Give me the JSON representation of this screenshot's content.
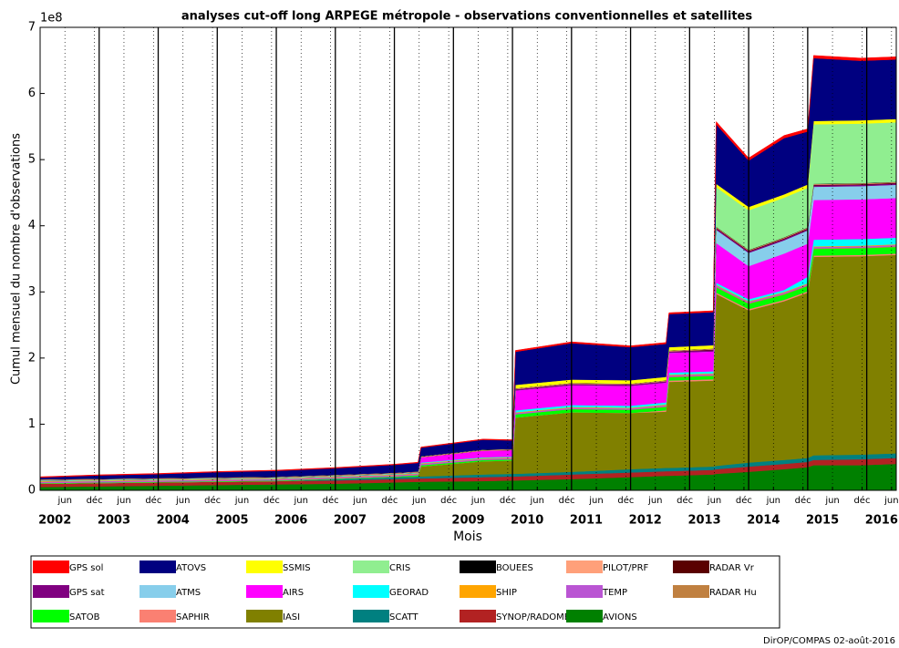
{
  "chart_data": {
    "type": "stacked_area",
    "title": "analyses cut-off long ARPEGE métropole - observations conventionnelles et satellites",
    "ylabel": "Cumul mensuel du nombre d'observations",
    "xlabel": "Mois",
    "y_offset_label": "1e8",
    "footer": "DirOP/COMPAS 02-août-2016",
    "xlim": [
      2002.0,
      2016.5
    ],
    "ylim": [
      0,
      7
    ],
    "yticks": [
      0,
      1,
      2,
      3,
      4,
      5,
      6,
      7
    ],
    "grid": true,
    "legend": "below",
    "xticks": [
      {
        "value": 2002.42,
        "label": "jun"
      },
      {
        "value": 2002.92,
        "label": "déc"
      },
      {
        "value": 2003.42,
        "label": "jun"
      },
      {
        "value": 2003.92,
        "label": "déc"
      },
      {
        "value": 2004.42,
        "label": "jun"
      },
      {
        "value": 2004.92,
        "label": "déc"
      },
      {
        "value": 2005.42,
        "label": "jun"
      },
      {
        "value": 2005.92,
        "label": "déc"
      },
      {
        "value": 2006.42,
        "label": "jun"
      },
      {
        "value": 2006.92,
        "label": "déc"
      },
      {
        "value": 2007.42,
        "label": "jun"
      },
      {
        "value": 2007.92,
        "label": "déc"
      },
      {
        "value": 2008.42,
        "label": "jun"
      },
      {
        "value": 2008.92,
        "label": "déc"
      },
      {
        "value": 2009.42,
        "label": "jun"
      },
      {
        "value": 2009.92,
        "label": "déc"
      },
      {
        "value": 2010.42,
        "label": "jun"
      },
      {
        "value": 2010.92,
        "label": "déc"
      },
      {
        "value": 2011.42,
        "label": "jun"
      },
      {
        "value": 2011.92,
        "label": "déc"
      },
      {
        "value": 2012.42,
        "label": "jun"
      },
      {
        "value": 2012.92,
        "label": "déc"
      },
      {
        "value": 2013.42,
        "label": "jun"
      },
      {
        "value": 2013.92,
        "label": "déc"
      },
      {
        "value": 2014.42,
        "label": "jun"
      },
      {
        "value": 2014.92,
        "label": "déc"
      },
      {
        "value": 2015.42,
        "label": "jun"
      },
      {
        "value": 2015.92,
        "label": "déc"
      },
      {
        "value": 2016.42,
        "label": "jun"
      }
    ],
    "year_labels": [
      {
        "value": 2002.25,
        "label": "2002"
      },
      {
        "value": 2003.25,
        "label": "2003"
      },
      {
        "value": 2004.25,
        "label": "2004"
      },
      {
        "value": 2005.25,
        "label": "2005"
      },
      {
        "value": 2006.25,
        "label": "2006"
      },
      {
        "value": 2007.25,
        "label": "2007"
      },
      {
        "value": 2008.25,
        "label": "2008"
      },
      {
        "value": 2009.25,
        "label": "2009"
      },
      {
        "value": 2010.25,
        "label": "2010"
      },
      {
        "value": 2011.25,
        "label": "2011"
      },
      {
        "value": 2012.25,
        "label": "2012"
      },
      {
        "value": 2013.25,
        "label": "2013"
      },
      {
        "value": 2014.25,
        "label": "2014"
      },
      {
        "value": 2015.25,
        "label": "2015"
      },
      {
        "value": 2016.25,
        "label": "2016"
      }
    ],
    "vlines": [
      2003,
      2004,
      2005,
      2006,
      2007,
      2008,
      2009,
      2010,
      2011,
      2012,
      2013,
      2014,
      2015,
      2016
    ],
    "x": [
      2002.0,
      2003.0,
      2004.0,
      2005.0,
      2006.0,
      2007.0,
      2008.0,
      2008.4,
      2008.45,
      2009.5,
      2010.0,
      2010.05,
      2011.0,
      2012.0,
      2012.6,
      2012.65,
      2013.4,
      2013.45,
      2014.0,
      2014.6,
      2015.0,
      2015.1,
      2015.9,
      2016.5
    ],
    "series": [
      {
        "name": "GPS sol",
        "color": "#ff0000",
        "values": [
          0.01,
          0.01,
          0.01,
          0.01,
          0.01,
          0.01,
          0.01,
          0.01,
          0.01,
          0.01,
          0.01,
          0.02,
          0.02,
          0.02,
          0.02,
          0.02,
          0.02,
          0.04,
          0.04,
          0.04,
          0.04,
          0.04,
          0.04,
          0.04
        ]
      },
      {
        "name": "ATOVS",
        "color": "#000080",
        "values": [
          0.03,
          0.05,
          0.06,
          0.08,
          0.09,
          0.1,
          0.12,
          0.13,
          0.13,
          0.15,
          0.13,
          0.5,
          0.55,
          0.5,
          0.5,
          0.5,
          0.5,
          0.9,
          0.7,
          0.85,
          0.8,
          0.95,
          0.9,
          0.9
        ]
      },
      {
        "name": "SSMIS",
        "color": "#ffff00",
        "values": [
          0,
          0,
          0,
          0,
          0,
          0,
          0,
          0,
          0,
          0,
          0,
          0.05,
          0.05,
          0.05,
          0.05,
          0.05,
          0.05,
          0.05,
          0.05,
          0.05,
          0.05,
          0.05,
          0.05,
          0.05
        ]
      },
      {
        "name": "CRIS",
        "color": "#90ee90",
        "values": [
          0,
          0,
          0,
          0,
          0,
          0,
          0,
          0,
          0,
          0,
          0,
          0,
          0,
          0,
          0,
          0,
          0,
          0.6,
          0.6,
          0.6,
          0.6,
          0.9,
          0.9,
          0.9
        ]
      },
      {
        "name": "BOUEES",
        "color": "#000000",
        "values": [
          0.005,
          0.005,
          0.005,
          0.005,
          0.005,
          0.005,
          0.005,
          0.005,
          0.005,
          0.005,
          0.005,
          0.005,
          0.005,
          0.005,
          0.005,
          0.005,
          0.005,
          0.005,
          0.005,
          0.005,
          0.005,
          0.005,
          0.005,
          0.005
        ]
      },
      {
        "name": "PILOT/PRF",
        "color": "#ffa07a",
        "values": [
          0.01,
          0.01,
          0.01,
          0.01,
          0.01,
          0.01,
          0.01,
          0.01,
          0.01,
          0.01,
          0.01,
          0.01,
          0.01,
          0.01,
          0.01,
          0.01,
          0.01,
          0.01,
          0.01,
          0.01,
          0.01,
          0.01,
          0.01,
          0.01
        ]
      },
      {
        "name": "RADAR Vr",
        "color": "#5a0000",
        "values": [
          0,
          0,
          0,
          0,
          0,
          0,
          0,
          0,
          0,
          0,
          0,
          0,
          0,
          0,
          0,
          0,
          0.01,
          0.01,
          0.01,
          0.01,
          0.01,
          0.01,
          0.01,
          0.01
        ]
      },
      {
        "name": "GPS sat",
        "color": "#800080",
        "values": [
          0,
          0,
          0,
          0,
          0,
          0,
          0,
          0,
          0,
          0,
          0,
          0.02,
          0.02,
          0.02,
          0.02,
          0.02,
          0.02,
          0.02,
          0.02,
          0.02,
          0.02,
          0.02,
          0.02,
          0.02
        ]
      },
      {
        "name": "ATMS",
        "color": "#87ceeb",
        "values": [
          0,
          0,
          0,
          0,
          0,
          0,
          0,
          0,
          0,
          0,
          0,
          0,
          0,
          0,
          0,
          0,
          0,
          0.2,
          0.2,
          0.2,
          0.2,
          0.2,
          0.2,
          0.2
        ]
      },
      {
        "name": "AIRS",
        "color": "#ff00ff",
        "values": [
          0,
          0,
          0,
          0,
          0,
          0,
          0,
          0,
          0.08,
          0.1,
          0.1,
          0.3,
          0.3,
          0.3,
          0.3,
          0.3,
          0.3,
          0.6,
          0.5,
          0.55,
          0.5,
          0.6,
          0.6,
          0.6
        ]
      },
      {
        "name": "GEORAD",
        "color": "#00ffff",
        "values": [
          0.01,
          0.01,
          0.01,
          0.01,
          0.01,
          0.01,
          0.01,
          0.01,
          0.01,
          0.01,
          0.01,
          0.03,
          0.03,
          0.03,
          0.03,
          0.03,
          0.03,
          0.03,
          0.03,
          0.03,
          0.1,
          0.1,
          0.1,
          0.1
        ]
      },
      {
        "name": "SHIP",
        "color": "#ffa500",
        "values": [
          0.01,
          0.01,
          0.01,
          0.01,
          0.01,
          0.01,
          0.01,
          0.01,
          0.01,
          0.01,
          0.01,
          0.01,
          0.01,
          0.01,
          0.01,
          0.01,
          0.01,
          0.01,
          0.01,
          0.01,
          0.01,
          0.01,
          0.01,
          0.01
        ]
      },
      {
        "name": "TEMP",
        "color": "#ba55d3",
        "values": [
          0.02,
          0.02,
          0.02,
          0.02,
          0.02,
          0.02,
          0.02,
          0.02,
          0.02,
          0.02,
          0.02,
          0.02,
          0.02,
          0.02,
          0.02,
          0.02,
          0.02,
          0.02,
          0.02,
          0.02,
          0.02,
          0.02,
          0.02,
          0.02
        ]
      },
      {
        "name": "RADAR Hu",
        "color": "#c08040",
        "values": [
          0,
          0,
          0,
          0,
          0,
          0,
          0,
          0,
          0,
          0,
          0,
          0,
          0,
          0,
          0.01,
          0.01,
          0.01,
          0.01,
          0.01,
          0.01,
          0.01,
          0.01,
          0.01,
          0.01
        ]
      },
      {
        "name": "SATOB",
        "color": "#00ff00",
        "values": [
          0.01,
          0.01,
          0.01,
          0.01,
          0.01,
          0.01,
          0.01,
          0.02,
          0.02,
          0.02,
          0.02,
          0.05,
          0.05,
          0.05,
          0.05,
          0.05,
          0.05,
          0.08,
          0.08,
          0.08,
          0.08,
          0.1,
          0.1,
          0.1
        ]
      },
      {
        "name": "SAPHIR",
        "color": "#fa8072",
        "values": [
          0,
          0,
          0,
          0,
          0,
          0,
          0,
          0,
          0,
          0,
          0,
          0,
          0,
          0,
          0.02,
          0.02,
          0.02,
          0.02,
          0.02,
          0.02,
          0.02,
          0.02,
          0.02,
          0.02
        ]
      },
      {
        "name": "IASI",
        "color": "#808000",
        "values": [
          0,
          0,
          0,
          0,
          0,
          0,
          0,
          0,
          0.15,
          0.2,
          0.2,
          0.85,
          0.9,
          0.85,
          0.85,
          1.3,
          1.3,
          2.6,
          2.3,
          2.4,
          2.5,
          3.0,
          3.0,
          3.0
        ]
      },
      {
        "name": "SCATT",
        "color": "#008080",
        "values": [
          0,
          0,
          0,
          0,
          0,
          0.02,
          0.03,
          0.03,
          0.03,
          0.04,
          0.04,
          0.04,
          0.04,
          0.05,
          0.05,
          0.05,
          0.05,
          0.05,
          0.06,
          0.06,
          0.06,
          0.07,
          0.07,
          0.07
        ]
      },
      {
        "name": "SYNOP/RADOME",
        "color": "#b22222",
        "values": [
          0.05,
          0.05,
          0.05,
          0.05,
          0.05,
          0.05,
          0.05,
          0.05,
          0.05,
          0.06,
          0.06,
          0.06,
          0.07,
          0.07,
          0.07,
          0.07,
          0.07,
          0.07,
          0.08,
          0.08,
          0.08,
          0.08,
          0.09,
          0.09
        ]
      },
      {
        "name": "AVIONS",
        "color": "#008000",
        "values": [
          0.05,
          0.06,
          0.07,
          0.08,
          0.09,
          0.1,
          0.12,
          0.13,
          0.13,
          0.14,
          0.15,
          0.15,
          0.17,
          0.2,
          0.22,
          0.22,
          0.24,
          0.25,
          0.28,
          0.32,
          0.35,
          0.38,
          0.38,
          0.4
        ]
      }
    ]
  }
}
